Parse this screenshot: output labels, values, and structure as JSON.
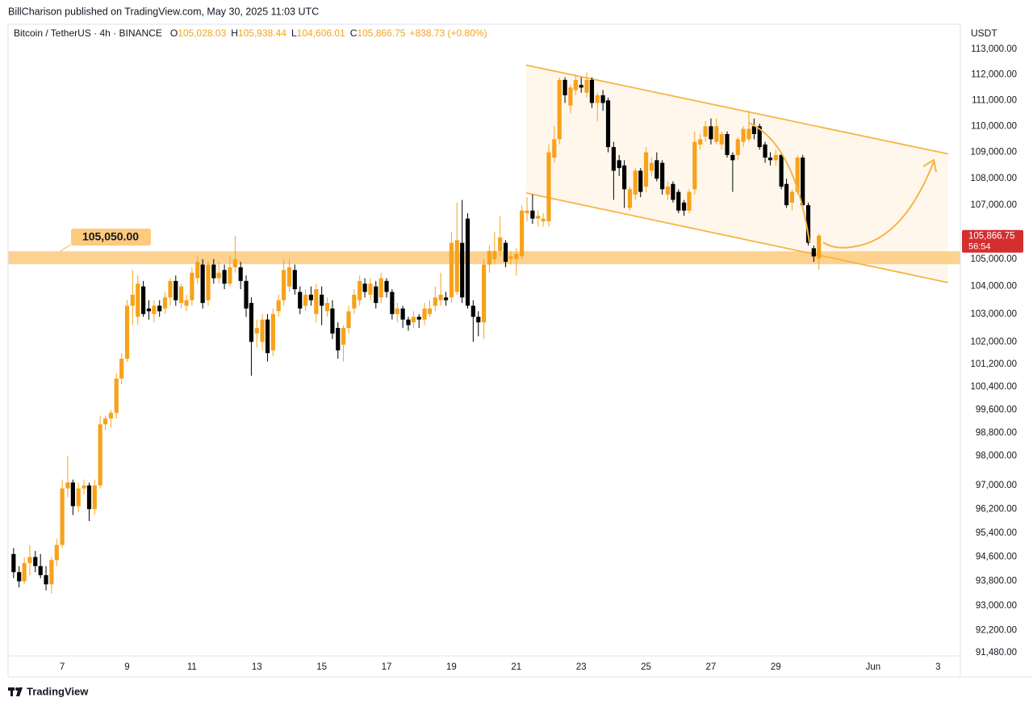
{
  "chart_data": {
    "type": "candlestick",
    "header": "BillCharison published on TradingView.com, May 30, 2025 11:03 UTC",
    "legend": {
      "symbol": "Bitcoin / TetherUS · 4h · BINANCE",
      "items": [
        {
          "key": "O",
          "value": "105,028.03"
        },
        {
          "key": "H",
          "value": "105,938.44"
        },
        {
          "key": "L",
          "value": "104,606.01"
        },
        {
          "key": "C",
          "value": "105,866.75"
        }
      ],
      "change": "+838.73 (+0.80%)"
    },
    "y_unit": "USDT",
    "footer": "TradingView",
    "log": true,
    "up_color": "#f7a21b",
    "down_color": "#000000",
    "xlim": [
      5.33,
      34.69
    ],
    "ylim": [
      91380,
      114000
    ],
    "xticks": [
      7,
      9,
      11,
      13,
      15,
      17,
      19,
      21,
      23,
      25,
      27,
      29,
      {
        "value": 32,
        "label": "Jun"
      },
      {
        "value": 34,
        "label": "3"
      }
    ],
    "yticks": [
      {
        "value": 113000,
        "label": "113,000.00"
      },
      {
        "value": 112000,
        "label": "112,000.00"
      },
      {
        "value": 111000,
        "label": "111,000.00"
      },
      {
        "value": 110000,
        "label": "110,000.00"
      },
      {
        "value": 109000,
        "label": "109,000.00"
      },
      {
        "value": 108000,
        "label": "108,000.00"
      },
      {
        "value": 107000,
        "label": "107,000.00"
      },
      {
        "value": 105000,
        "label": "105,000.00"
      },
      {
        "value": 104000,
        "label": "104,000.00"
      },
      {
        "value": 103000,
        "label": "103,000.00"
      },
      {
        "value": 102000,
        "label": "102,000.00"
      },
      {
        "value": 101200,
        "label": "101,200.00"
      },
      {
        "value": 100400,
        "label": "100,400.00"
      },
      {
        "value": 99600,
        "label": "99,600.00"
      },
      {
        "value": 98800,
        "label": "98,800.00"
      },
      {
        "value": 98000,
        "label": "98,000.00"
      },
      {
        "value": 97000,
        "label": "97,000.00"
      },
      {
        "value": 96200,
        "label": "96,200.00"
      },
      {
        "value": 95400,
        "label": "95,400.00"
      },
      {
        "value": 94600,
        "label": "94,600.00"
      },
      {
        "value": 93800,
        "label": "93,800.00"
      },
      {
        "value": 93000,
        "label": "93,000.00"
      },
      {
        "value": 92200,
        "label": "92,200.00"
      },
      {
        "value": 91480,
        "label": "91,480.00"
      }
    ],
    "zone": {
      "value": 105050,
      "label": "105,050.00",
      "color": "#fdca7e"
    },
    "channel": {
      "color": "#f7b446",
      "fill": "#fff7ec",
      "upper": [
        [
          21.3,
          112380
        ],
        [
          34.31,
          108940
        ]
      ],
      "lower": [
        [
          21.3,
          107460
        ],
        [
          34.31,
          104140
        ]
      ]
    },
    "last_price": {
      "value": 105866.75,
      "label": "105,866.75",
      "countdown": "56:54",
      "color": "#d32f2f"
    },
    "x": [
      5.5,
      5.67,
      5.83,
      6,
      6.17,
      6.33,
      6.5,
      6.67,
      6.83,
      7,
      7.17,
      7.33,
      7.5,
      7.67,
      7.83,
      8,
      8.17,
      8.33,
      8.5,
      8.67,
      8.83,
      9,
      9.17,
      9.33,
      9.5,
      9.67,
      9.83,
      10,
      10.17,
      10.33,
      10.5,
      10.67,
      10.83,
      11,
      11.17,
      11.33,
      11.5,
      11.67,
      11.83,
      12,
      12.17,
      12.33,
      12.5,
      12.67,
      12.83,
      13,
      13.17,
      13.33,
      13.5,
      13.67,
      13.83,
      14,
      14.17,
      14.33,
      14.5,
      14.67,
      14.83,
      15,
      15.17,
      15.33,
      15.5,
      15.67,
      15.83,
      16,
      16.17,
      16.33,
      16.5,
      16.67,
      16.83,
      17,
      17.17,
      17.33,
      17.5,
      17.67,
      17.83,
      18,
      18.17,
      18.33,
      18.5,
      18.67,
      18.83,
      19,
      19.17,
      19.33,
      19.5,
      19.67,
      19.83,
      20,
      20.17,
      20.33,
      20.5,
      20.67,
      20.83,
      21,
      21.17,
      21.33,
      21.5,
      21.67,
      21.83,
      22,
      22.17,
      22.33,
      22.5,
      22.67,
      22.83,
      23,
      23.17,
      23.33,
      23.5,
      23.67,
      23.83,
      24,
      24.17,
      24.33,
      24.5,
      24.67,
      24.83,
      25,
      25.17,
      25.33,
      25.5,
      25.67,
      25.83,
      26,
      26.17,
      26.33,
      26.5,
      26.67,
      26.83,
      27,
      27.17,
      27.33,
      27.5,
      27.67,
      27.83,
      28,
      28.17,
      28.33,
      28.5,
      28.67,
      28.83,
      29,
      29.17,
      29.33,
      29.5,
      29.67,
      29.83,
      30,
      30.17,
      30.33
    ],
    "ohlc": [
      [
        94700,
        94900,
        93900,
        94100
      ],
      [
        94100,
        94300,
        93600,
        93800
      ],
      [
        93800,
        94600,
        93700,
        94400
      ],
      [
        94400,
        95000,
        94000,
        94600
      ],
      [
        94600,
        94800,
        94100,
        94300
      ],
      [
        94300,
        94700,
        93900,
        94000
      ],
      [
        94000,
        94300,
        93500,
        93700
      ],
      [
        93700,
        94600,
        93400,
        94500
      ],
      [
        94500,
        95200,
        94300,
        95000
      ],
      [
        95000,
        97200,
        94900,
        96900
      ],
      [
        96900,
        98000,
        96600,
        97100
      ],
      [
        97100,
        97200,
        96000,
        96300
      ],
      [
        96300,
        97100,
        96100,
        96900
      ],
      [
        96900,
        97200,
        96700,
        97000
      ],
      [
        97000,
        97100,
        95800,
        96200
      ],
      [
        96200,
        97200,
        96000,
        97000
      ],
      [
        97000,
        99400,
        96900,
        99100
      ],
      [
        99100,
        99400,
        98900,
        99300
      ],
      [
        99300,
        99600,
        99000,
        99500
      ],
      [
        99500,
        100900,
        99300,
        100700
      ],
      [
        100700,
        101600,
        100500,
        101400
      ],
      [
        101400,
        103500,
        101300,
        103300
      ],
      [
        103300,
        104600,
        102600,
        103700
      ],
      [
        102900,
        104400,
        102600,
        104100
      ],
      [
        104000,
        104200,
        102900,
        103000
      ],
      [
        103200,
        103500,
        102800,
        103100
      ],
      [
        103000,
        103500,
        102700,
        103300
      ],
      [
        103300,
        103500,
        102900,
        103100
      ],
      [
        103200,
        103800,
        103000,
        103600
      ],
      [
        103600,
        104300,
        103300,
        104200
      ],
      [
        104200,
        104400,
        103300,
        103500
      ],
      [
        103400,
        104100,
        103200,
        104000
      ],
      [
        103300,
        103700,
        103100,
        103500
      ],
      [
        103500,
        104700,
        103300,
        104500
      ],
      [
        104300,
        105100,
        104100,
        104900
      ],
      [
        104800,
        105000,
        103200,
        103400
      ],
      [
        103500,
        104900,
        103300,
        104800
      ],
      [
        104800,
        105000,
        104100,
        104300
      ],
      [
        104300,
        104900,
        104100,
        104500
      ],
      [
        104600,
        104800,
        103900,
        104100
      ],
      [
        104100,
        105100,
        104000,
        104700
      ],
      [
        104700,
        105850,
        104500,
        105000
      ],
      [
        104700,
        104900,
        103900,
        104200
      ],
      [
        104200,
        104400,
        102900,
        103200
      ],
      [
        103400,
        103600,
        100800,
        102000
      ],
      [
        102300,
        102800,
        101800,
        102500
      ],
      [
        102000,
        103000,
        101700,
        102800
      ],
      [
        102800,
        103000,
        101300,
        101600
      ],
      [
        101700,
        103200,
        101500,
        103000
      ],
      [
        103100,
        103700,
        102900,
        103500
      ],
      [
        103500,
        105000,
        103300,
        104600
      ],
      [
        104000,
        105000,
        103800,
        104700
      ],
      [
        104600,
        104800,
        103700,
        103900
      ],
      [
        103800,
        104000,
        103000,
        103200
      ],
      [
        103300,
        103900,
        103100,
        103700
      ],
      [
        103700,
        104000,
        103300,
        103500
      ],
      [
        103000,
        104100,
        102700,
        103900
      ],
      [
        103700,
        104000,
        102600,
        103300
      ],
      [
        103100,
        103600,
        102900,
        103400
      ],
      [
        103200,
        103500,
        102100,
        102300
      ],
      [
        102500,
        102700,
        101400,
        101700
      ],
      [
        101900,
        102600,
        101300,
        102500
      ],
      [
        102500,
        103300,
        102300,
        103100
      ],
      [
        103200,
        103900,
        103000,
        103700
      ],
      [
        103500,
        104400,
        103300,
        104200
      ],
      [
        104100,
        104300,
        103600,
        103800
      ],
      [
        103700,
        104300,
        103500,
        104100
      ],
      [
        104000,
        104200,
        103200,
        103400
      ],
      [
        103600,
        104500,
        103400,
        104300
      ],
      [
        104200,
        104300,
        103600,
        103800
      ],
      [
        103800,
        103900,
        102800,
        103000
      ],
      [
        103000,
        103400,
        102700,
        103200
      ],
      [
        103200,
        103300,
        102500,
        102800
      ],
      [
        102800,
        102900,
        102400,
        102600
      ],
      [
        102700,
        103100,
        102500,
        102900
      ],
      [
        102900,
        103000,
        102500,
        102800
      ],
      [
        102800,
        103400,
        102600,
        103200
      ],
      [
        103000,
        103500,
        102900,
        103200
      ],
      [
        103300,
        104000,
        103100,
        103600
      ],
      [
        103500,
        104500,
        103300,
        103700
      ],
      [
        103600,
        103800,
        103300,
        103500
      ],
      [
        103600,
        106000,
        103400,
        105600
      ],
      [
        103800,
        107100,
        103700,
        105700
      ],
      [
        105600,
        107200,
        103400,
        103600
      ],
      [
        106500,
        106700,
        103200,
        103300
      ],
      [
        103300,
        103500,
        102000,
        102900
      ],
      [
        102900,
        103100,
        102200,
        102700
      ],
      [
        102700,
        105000,
        102100,
        104800
      ],
      [
        104800,
        105500,
        104500,
        105300
      ],
      [
        105000,
        106000,
        104800,
        105300
      ],
      [
        105300,
        106600,
        105100,
        105800
      ],
      [
        105600,
        105700,
        104700,
        104900
      ],
      [
        105000,
        105300,
        104800,
        105100
      ],
      [
        105000,
        105400,
        104400,
        105200
      ],
      [
        105100,
        107000,
        105000,
        106800
      ],
      [
        106700,
        107300,
        106400,
        106800
      ],
      [
        106800,
        107400,
        106300,
        106500
      ],
      [
        106500,
        106800,
        106200,
        106600
      ],
      [
        106400,
        106700,
        106200,
        106500
      ],
      [
        106400,
        109300,
        106200,
        109000
      ],
      [
        108800,
        110000,
        108600,
        109500
      ],
      [
        109500,
        111900,
        109300,
        111800
      ],
      [
        111800,
        111900,
        110900,
        111200
      ],
      [
        110800,
        111600,
        110500,
        111500
      ],
      [
        111400,
        112000,
        111200,
        111800
      ],
      [
        111600,
        111900,
        111300,
        111500
      ],
      [
        111300,
        112100,
        111100,
        111800
      ],
      [
        111800,
        111900,
        110700,
        110900
      ],
      [
        110900,
        111300,
        110200,
        111200
      ],
      [
        111200,
        111400,
        110600,
        110900
      ],
      [
        111000,
        111100,
        109000,
        109200
      ],
      [
        109200,
        109400,
        107200,
        108300
      ],
      [
        108700,
        108900,
        108100,
        108400
      ],
      [
        108500,
        108700,
        106900,
        107600
      ],
      [
        106900,
        107700,
        106800,
        107600
      ],
      [
        107400,
        108400,
        107200,
        108300
      ],
      [
        108300,
        108400,
        107300,
        107500
      ],
      [
        107700,
        109200,
        107500,
        109000
      ],
      [
        108300,
        108800,
        108100,
        108600
      ],
      [
        108700,
        109000,
        107900,
        108000
      ],
      [
        108600,
        108700,
        107400,
        107600
      ],
      [
        107400,
        107900,
        107200,
        107700
      ],
      [
        107800,
        107900,
        107100,
        107200
      ],
      [
        107500,
        107600,
        106700,
        106800
      ],
      [
        107100,
        107200,
        106600,
        106800
      ],
      [
        106800,
        107600,
        106700,
        107500
      ],
      [
        107600,
        109800,
        107400,
        109400
      ],
      [
        109300,
        109700,
        109100,
        109500
      ],
      [
        109600,
        110200,
        109400,
        110000
      ],
      [
        110000,
        110300,
        109300,
        109500
      ],
      [
        109400,
        110300,
        109300,
        110000
      ],
      [
        109300,
        109800,
        109100,
        109700
      ],
      [
        109700,
        109800,
        108800,
        108900
      ],
      [
        108900,
        109000,
        107500,
        108700
      ],
      [
        108900,
        109600,
        108700,
        109500
      ],
      [
        109400,
        110000,
        109200,
        109900
      ],
      [
        109500,
        110600,
        109400,
        109900
      ],
      [
        110000,
        110300,
        109500,
        109700
      ],
      [
        110000,
        110100,
        109100,
        109200
      ],
      [
        109300,
        109400,
        108600,
        108800
      ],
      [
        108800,
        109000,
        108500,
        108700
      ],
      [
        108700,
        109100,
        108500,
        108900
      ],
      [
        108900,
        109000,
        107600,
        107700
      ],
      [
        107800,
        108000,
        106900,
        107000
      ],
      [
        107100,
        107600,
        106800,
        107500
      ],
      [
        107500,
        108900,
        107400,
        108800
      ],
      [
        108800,
        108900,
        106900,
        107000
      ],
      [
        107000,
        107100,
        105500,
        105600
      ],
      [
        105400,
        105500,
        104900,
        105100
      ],
      [
        105028.03,
        105938.44,
        104606.01,
        105866.75
      ]
    ]
  }
}
